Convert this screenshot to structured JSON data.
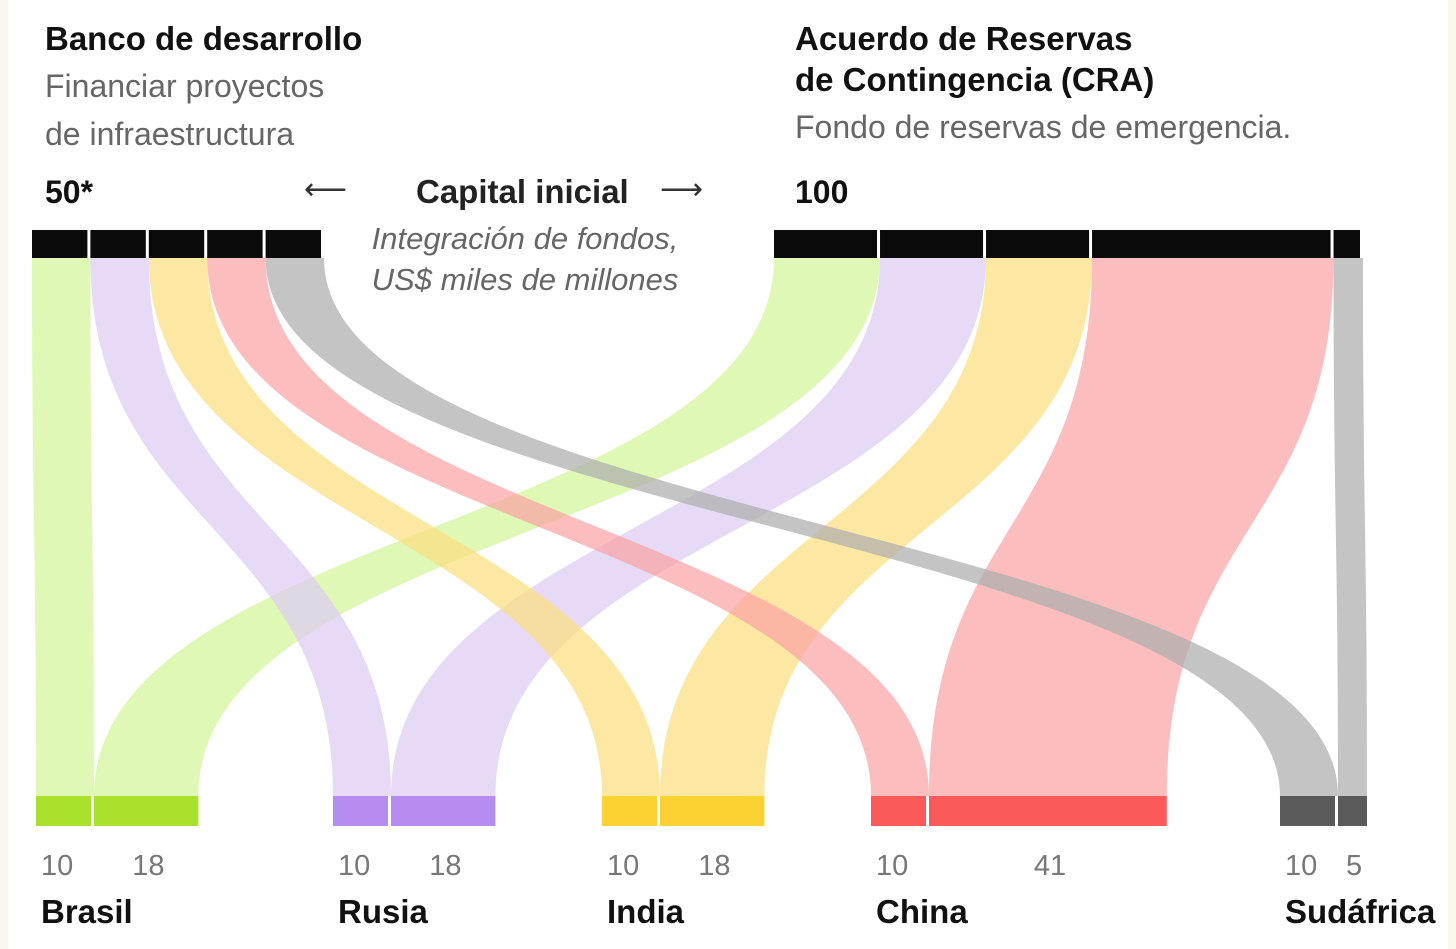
{
  "left_panel": {
    "title": "Banco de desarrollo",
    "subtitle_line1": "Financiar proyectos",
    "subtitle_line2": "de infraestructura",
    "total": "50*"
  },
  "right_panel": {
    "title_line1": "Acuerdo de Reservas",
    "title_line2": "de Contingencia (CRA)",
    "subtitle": "Fondo de reservas de emergencia.",
    "total": "100"
  },
  "center": {
    "title": "Capital inicial",
    "sub_line1": "Integración de fondos,",
    "sub_line2": "US$ miles de millones",
    "arrow_left": "⟵",
    "arrow_right": "⟶"
  },
  "colors": {
    "Brasil": {
      "flow": "#d2f59a",
      "bar": "#a9e22c"
    },
    "Rusia": {
      "flow": "#ddccf3",
      "bar": "#b68cf0"
    },
    "India": {
      "flow": "#fcdf80",
      "bar": "#fcd232"
    },
    "China": {
      "flow": "#f9a3a3",
      "bar": "#fb5a5a"
    },
    "Sudáfrica": {
      "flow": "#adadad",
      "bar": "#5a5a5a"
    },
    "top_bar": "#0a0a0a"
  },
  "chart_data": {
    "type": "sankey",
    "unit": "US$ miles de millones",
    "sources": [
      {
        "name": "Banco de desarrollo",
        "total": 50
      },
      {
        "name": "Acuerdo de Reservas de Contingencia (CRA)",
        "total": 100
      }
    ],
    "countries": [
      {
        "name": "Brasil",
        "banco": 10,
        "cra": 18
      },
      {
        "name": "Rusia",
        "banco": 10,
        "cra": 18
      },
      {
        "name": "India",
        "banco": 10,
        "cra": 18
      },
      {
        "name": "China",
        "banco": 10,
        "cra": 41
      },
      {
        "name": "Sudáfrica",
        "banco": 10,
        "cra": 5
      }
    ]
  }
}
